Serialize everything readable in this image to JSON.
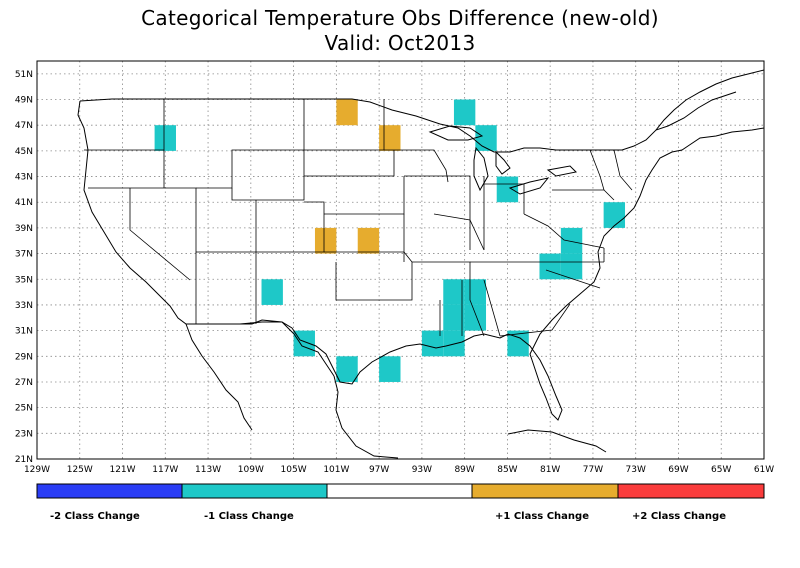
{
  "title": {
    "line1": "Categorical Temperature Obs Difference (new-old)",
    "line2": "Valid: Oct2013"
  },
  "axes": {
    "lat_ticks": [
      "51N",
      "49N",
      "47N",
      "45N",
      "43N",
      "41N",
      "39N",
      "37N",
      "35N",
      "33N",
      "31N",
      "29N",
      "27N",
      "25N",
      "23N",
      "21N"
    ],
    "lat_values": [
      51,
      49,
      47,
      45,
      43,
      41,
      39,
      37,
      35,
      33,
      31,
      29,
      27,
      25,
      23,
      21
    ],
    "lon_ticks": [
      "129W",
      "125W",
      "121W",
      "117W",
      "113W",
      "109W",
      "105W",
      "101W",
      "97W",
      "93W",
      "89W",
      "85W",
      "81W",
      "77W",
      "73W",
      "69W",
      "65W",
      "61W"
    ],
    "lon_values": [
      -129,
      -125,
      -121,
      -117,
      -113,
      -109,
      -105,
      -101,
      -97,
      -93,
      -89,
      -85,
      -81,
      -77,
      -73,
      -69,
      -65,
      -61
    ],
    "lat_range": [
      21,
      52
    ],
    "lon_range": [
      -129,
      -61
    ],
    "grid": "dotted"
  },
  "colors": {
    "minus2": "#2a3df5",
    "minus1": "#1ec8c8",
    "zero": "#ffffff",
    "plus1": "#e6ac2e",
    "plus2": "#fa3c3c"
  },
  "legend": {
    "labels": [
      "-2 Class Change",
      "-1 Class Change",
      "+1 Class Change",
      "+2 Class Change"
    ]
  },
  "chart_data": {
    "type": "heatmap",
    "title": "Categorical Temperature Obs Difference (new-old)",
    "subtitle": "Valid: Oct2013",
    "cell_size_deg": 2,
    "categories": [
      "-2 Class Change",
      "-1 Class Change",
      "+1 Class Change",
      "+2 Class Change"
    ],
    "cells": [
      {
        "lon": -117,
        "lat": 46,
        "value": -1
      },
      {
        "lon": -100,
        "lat": 48,
        "value": 1
      },
      {
        "lon": -96,
        "lat": 46,
        "value": 1
      },
      {
        "lon": -89,
        "lat": 48,
        "value": -1
      },
      {
        "lon": -87,
        "lat": 46,
        "value": -1
      },
      {
        "lon": -85,
        "lat": 42,
        "value": -1
      },
      {
        "lon": -102,
        "lat": 38,
        "value": 1
      },
      {
        "lon": -98,
        "lat": 38,
        "value": 1
      },
      {
        "lon": -75,
        "lat": 40,
        "value": -1
      },
      {
        "lon": -79,
        "lat": 38,
        "value": -1
      },
      {
        "lon": -79,
        "lat": 36,
        "value": -1
      },
      {
        "lon": -81,
        "lat": 36,
        "value": -1
      },
      {
        "lon": -107,
        "lat": 34,
        "value": -1
      },
      {
        "lon": -90,
        "lat": 34,
        "value": -1
      },
      {
        "lon": -88,
        "lat": 34,
        "value": -1
      },
      {
        "lon": -90,
        "lat": 32,
        "value": -1
      },
      {
        "lon": -88,
        "lat": 32,
        "value": -1
      },
      {
        "lon": -104,
        "lat": 30,
        "value": -1
      },
      {
        "lon": -92,
        "lat": 30,
        "value": -1
      },
      {
        "lon": -90,
        "lat": 30,
        "value": -1
      },
      {
        "lon": -84,
        "lat": 30,
        "value": -1
      },
      {
        "lon": -100,
        "lat": 28,
        "value": -1
      },
      {
        "lon": -96,
        "lat": 28,
        "value": -1
      }
    ]
  }
}
